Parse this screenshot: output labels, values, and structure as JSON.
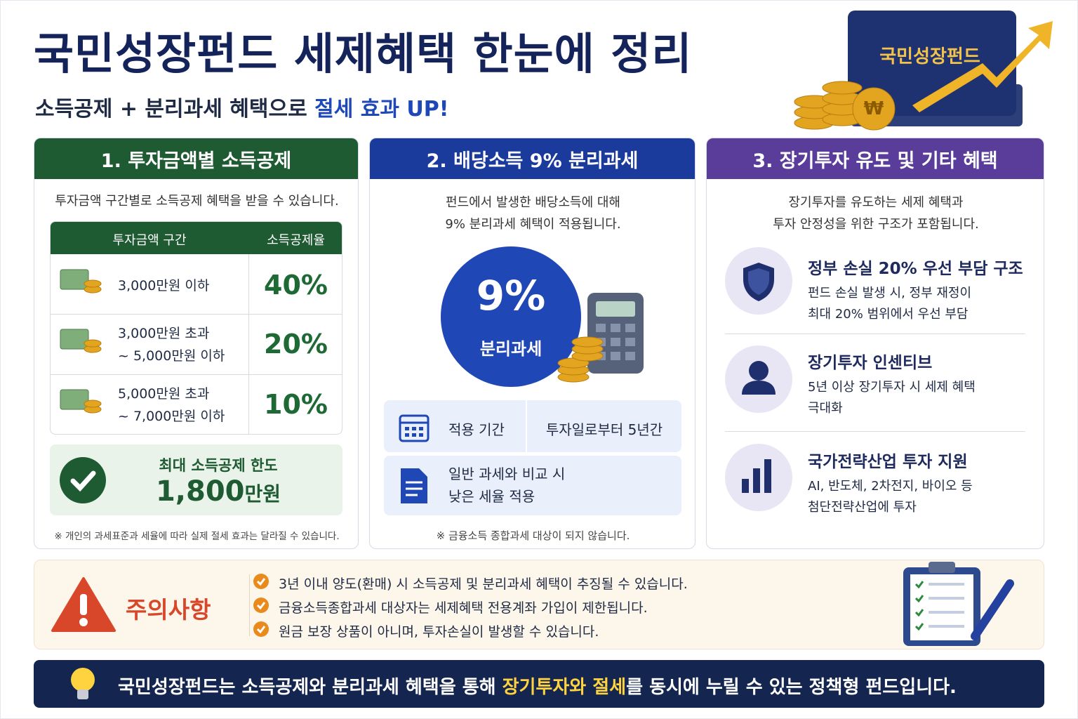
{
  "header": {
    "title": "국민성장펀드 세제혜택 한눈에 정리",
    "subtitle": [
      "소득공제 + 분리과세 혜택으로 ",
      "절세 효과 UP!"
    ],
    "badge": "국민성장펀드"
  },
  "section1": {
    "title": "1. 투자금액별 소득공제",
    "intro": "투자금액 구간별로 소득공제 혜택을 받을 수 있습니다.",
    "table": {
      "headers": [
        "투자금액 구간",
        "소득공제율"
      ],
      "rows": [
        {
          "range": [
            "3,000만원 이하"
          ],
          "rate": "40%"
        },
        {
          "range": [
            "3,000만원 초과",
            "~ 5,000만원 이하"
          ],
          "rate": "20%"
        },
        {
          "range": [
            "5,000만원 초과",
            "~ 7,000만원 이하"
          ],
          "rate": "10%"
        }
      ]
    },
    "limit": {
      "label": "최대 소득공제 한도",
      "amount": [
        "1,800",
        "만원"
      ]
    },
    "note": "※ 개인의 과세표준과 세율에 따라 실제 절세 효과는 달라질 수 있습니다."
  },
  "section2": {
    "title": "2. 배당소득 9% 분리과세",
    "intro": [
      "펀드에서 발생한 배당소득에 대해",
      "9% 분리과세 혜택이 적용됩니다."
    ],
    "badge": {
      "rate": "9%",
      "label": "분리과세"
    },
    "period": {
      "label": "적용 기간",
      "value": "투자일로부터 5년간"
    },
    "compare": [
      "일반 과세와 비교 시",
      "낮은 세율 적용"
    ],
    "note": "※ 금융소득 종합과세 대상이 되지 않습니다."
  },
  "section3": {
    "title": "3. 장기투자 유도 및 기타 혜택",
    "intro": [
      "장기투자를 유도하는 세제 혜택과",
      "투자 안정성을 위한 구조가 포함됩니다."
    ],
    "items": [
      {
        "title": "정부 손실 20% 우선 부담 구조",
        "desc": [
          "펀드 손실 발생 시, 정부 재정이",
          "최대 20% 범위에서 우선 부담"
        ]
      },
      {
        "title": "장기투자 인센티브",
        "desc": [
          "5년 이상 장기투자 시 세제 혜택",
          "극대화"
        ]
      },
      {
        "title": "국가전략산업 투자 지원",
        "desc": [
          "AI, 반도체, 2차전지, 바이오 등",
          "첨단전략산업에 투자"
        ]
      }
    ]
  },
  "caution": {
    "title": "주의사항",
    "items": [
      "3년 이내 양도(환매) 시 소득공제 및 분리과세 혜택이 추징될 수 있습니다.",
      "금융소득종합과세 대상자는 세제혜택 전용계좌 가입이 제한됩니다.",
      "원금 보장 상품이 아니며, 투자손실이 발생할 수 있습니다."
    ]
  },
  "footer": [
    "국민성장펀드는 소득공제와 분리과세 혜택을 통해 ",
    "장기투자와 절세",
    "를 동시에 누릴 수 있는 정책형 펀드입니다."
  ]
}
